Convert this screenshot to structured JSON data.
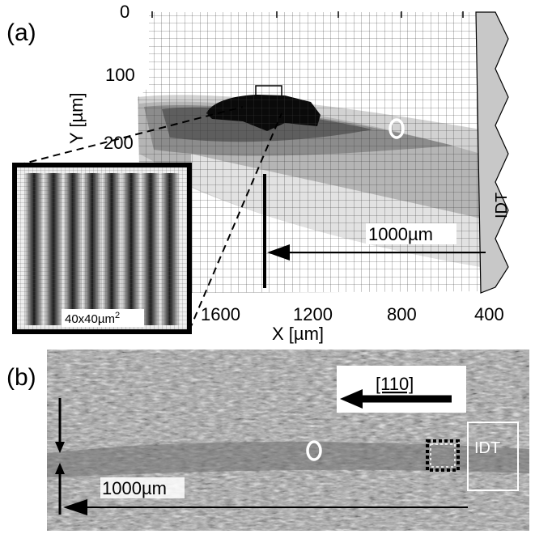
{
  "panel_a": {
    "label": "(a)",
    "y_axis_label": "Y [µm]",
    "y_ticks": [
      "0",
      "100",
      "200"
    ],
    "x_axis_label": "X [µm]",
    "x_ticks": [
      "1600",
      "1200",
      "800",
      "400"
    ],
    "transducer_label": "IDT",
    "distance_label": "1000µm",
    "inset_label": "40x40µm",
    "inset_label_exp": "2"
  },
  "panel_b": {
    "label": "(b)",
    "direction_label": "[110]",
    "transducer_label": "IDT",
    "distance_label": "1000µm"
  },
  "colors": {
    "grid_line": "#333333",
    "idt_fill": "#c8c8c8",
    "dark_region": "#0a0a0a",
    "marker_circle": "#ffffff"
  }
}
